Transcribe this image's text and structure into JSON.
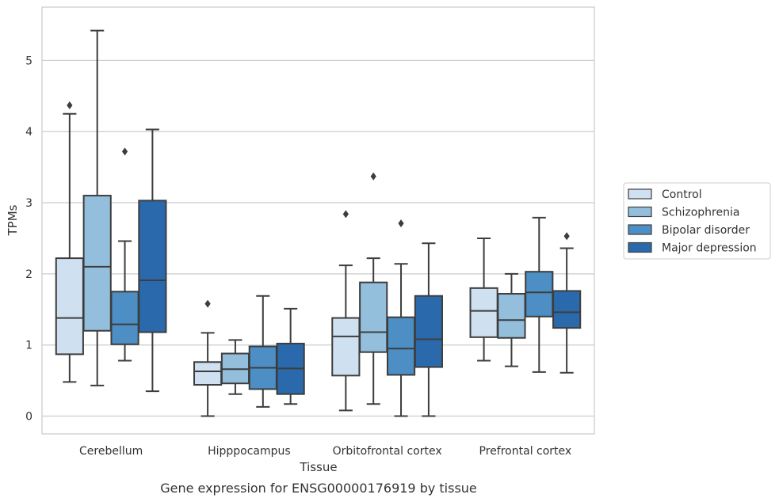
{
  "chart_data": {
    "type": "box",
    "caption": "Gene expression for ENSG00000176919 by tissue",
    "xlabel": "Tissue",
    "ylabel": "TPMs",
    "ylim": [
      -0.25,
      5.75
    ],
    "yticks": [
      0,
      1,
      2,
      3,
      4,
      5
    ],
    "grid": "horizontal",
    "legend_position": "right",
    "categories": [
      "Cerebellum",
      "Hipppocampus",
      "Orbitofrontal cortex",
      "Prefrontal cortex"
    ],
    "series": [
      {
        "name": "Control",
        "color": "#cfe0f0",
        "boxes": [
          {
            "whislo": 0.48,
            "q1": 0.87,
            "med": 1.38,
            "q3": 2.22,
            "whishi": 4.25,
            "fliers": [
              4.37
            ]
          },
          {
            "whislo": 0.0,
            "q1": 0.44,
            "med": 0.63,
            "q3": 0.76,
            "whishi": 1.17,
            "fliers": [
              1.58
            ]
          },
          {
            "whislo": 0.08,
            "q1": 0.57,
            "med": 1.12,
            "q3": 1.38,
            "whishi": 2.12,
            "fliers": [
              2.84
            ]
          },
          {
            "whislo": 0.78,
            "q1": 1.11,
            "med": 1.48,
            "q3": 1.8,
            "whishi": 2.5,
            "fliers": []
          }
        ]
      },
      {
        "name": "Schizophrenia",
        "color": "#93bfdc",
        "boxes": [
          {
            "whislo": 0.43,
            "q1": 1.2,
            "med": 2.1,
            "q3": 3.1,
            "whishi": 5.42,
            "fliers": []
          },
          {
            "whislo": 0.31,
            "q1": 0.46,
            "med": 0.66,
            "q3": 0.88,
            "whishi": 1.07,
            "fliers": []
          },
          {
            "whislo": 0.17,
            "q1": 0.9,
            "med": 1.18,
            "q3": 1.88,
            "whishi": 2.22,
            "fliers": [
              3.37
            ]
          },
          {
            "whislo": 0.7,
            "q1": 1.1,
            "med": 1.35,
            "q3": 1.72,
            "whishi": 2.0,
            "fliers": []
          }
        ]
      },
      {
        "name": "Bipolar disorder",
        "color": "#4d8fc4",
        "boxes": [
          {
            "whislo": 0.78,
            "q1": 1.01,
            "med": 1.29,
            "q3": 1.75,
            "whishi": 2.46,
            "fliers": [
              3.72
            ]
          },
          {
            "whislo": 0.13,
            "q1": 0.38,
            "med": 0.68,
            "q3": 0.98,
            "whishi": 1.69,
            "fliers": []
          },
          {
            "whislo": 0.0,
            "q1": 0.58,
            "med": 0.95,
            "q3": 1.39,
            "whishi": 2.14,
            "fliers": [
              2.71
            ]
          },
          {
            "whislo": 0.62,
            "q1": 1.4,
            "med": 1.74,
            "q3": 2.03,
            "whishi": 2.79,
            "fliers": []
          }
        ]
      },
      {
        "name": "Major depression",
        "color": "#2a6aac",
        "boxes": [
          {
            "whislo": 0.35,
            "q1": 1.18,
            "med": 1.91,
            "q3": 3.03,
            "whishi": 4.03,
            "fliers": []
          },
          {
            "whislo": 0.17,
            "q1": 0.31,
            "med": 0.67,
            "q3": 1.02,
            "whishi": 1.51,
            "fliers": []
          },
          {
            "whislo": 0.0,
            "q1": 0.69,
            "med": 1.08,
            "q3": 1.69,
            "whishi": 2.43,
            "fliers": []
          },
          {
            "whislo": 0.61,
            "q1": 1.24,
            "med": 1.46,
            "q3": 1.76,
            "whishi": 2.36,
            "fliers": [
              2.53
            ]
          }
        ]
      }
    ]
  }
}
